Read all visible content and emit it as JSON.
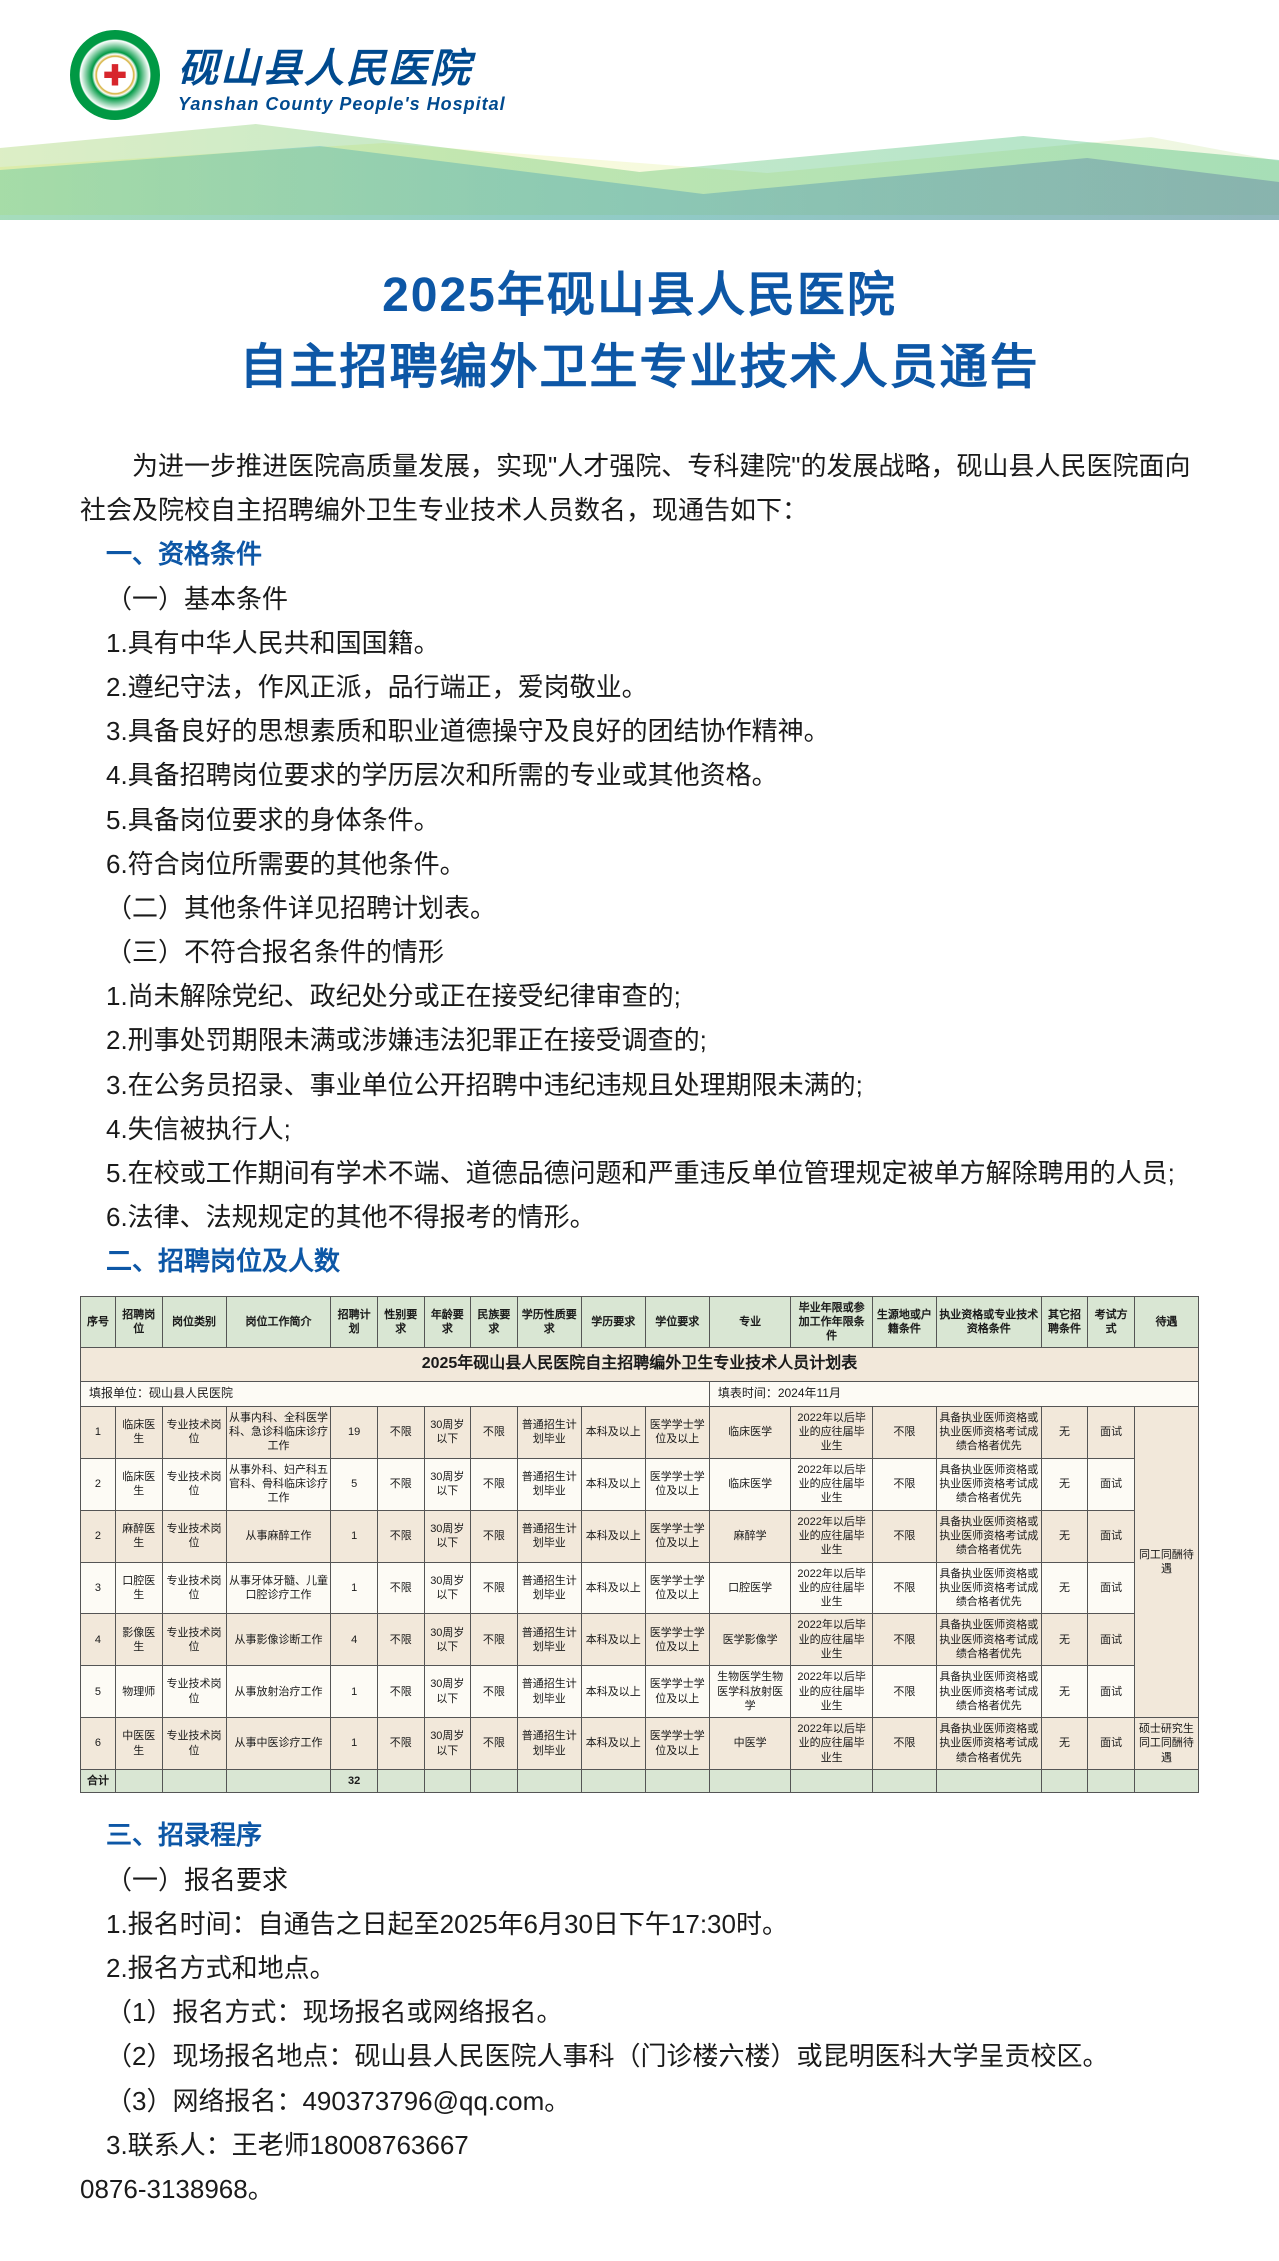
{
  "header": {
    "hospital_cn": "砚山县人民医院",
    "hospital_en": "Yanshan County People's Hospital"
  },
  "title": {
    "line1": "2025年砚山县人民医院",
    "line2": "自主招聘编外卫生专业技术人员通告"
  },
  "intro": "为进一步推进医院高质量发展，实现\"人才强院、专科建院\"的发展战略，砚山县人民医院面向社会及院校自主招聘编外卫生专业技术人员数名，现通告如下：",
  "sec1": {
    "head": "一、资格条件",
    "sub1": "（一）基本条件",
    "items1": [
      "1.具有中华人民共和国国籍。",
      "2.遵纪守法，作风正派，品行端正，爱岗敬业。",
      "3.具备良好的思想素质和职业道德操守及良好的团结协作精神。",
      "4.具备招聘岗位要求的学历层次和所需的专业或其他资格。",
      "5.具备岗位要求的身体条件。",
      "6.符合岗位所需要的其他条件。"
    ],
    "sub2": "（二）其他条件详见招聘计划表。",
    "sub3": "（三）不符合报名条件的情形",
    "items3": [
      "1.尚未解除党纪、政纪处分或正在接受纪律审查的;",
      "2.刑事处罚期限未满或涉嫌违法犯罪正在接受调查的;",
      "3.在公务员招录、事业单位公开招聘中违纪违规且处理期限未满的;",
      "4.失信被执行人;",
      "5.在校或工作期间有学术不端、道德品德问题和严重违反单位管理规定被单方解除聘用的人员;",
      "6.法律、法规规定的其他不得报考的情形。"
    ]
  },
  "sec2": {
    "head": "二、招聘岗位及人数"
  },
  "table": {
    "title": "2025年砚山县人民医院自主招聘编外卫生专业技术人员计划表",
    "meta_left": "填报单位：砚山县人民医院",
    "meta_right": "填表时间：2024年11月",
    "headers": [
      "序号",
      "招聘岗位",
      "岗位类别",
      "岗位工作简介",
      "招聘计划",
      "性别要求",
      "年龄要求",
      "民族要求",
      "学历性质要求",
      "学历要求",
      "学位要求",
      "专业",
      "毕业年限或参加工作年限条件",
      "生源地或户籍条件",
      "执业资格或专业技术资格条件",
      "其它招聘条件",
      "考试方式",
      "待遇"
    ],
    "rows": [
      [
        "1",
        "临床医生",
        "专业技术岗位",
        "从事内科、全科医学科、急诊科临床诊疗工作",
        "19",
        "不限",
        "30周岁以下",
        "不限",
        "普通招生计划毕业",
        "本科及以上",
        "医学学士学位及以上",
        "临床医学",
        "2022年以后毕业的应往届毕业生",
        "不限",
        "具备执业医师资格或执业医师资格考试成绩合格者优先",
        "无",
        "面试"
      ],
      [
        "2",
        "临床医生",
        "专业技术岗位",
        "从事外科、妇产科五官科、骨科临床诊疗工作",
        "5",
        "不限",
        "30周岁以下",
        "不限",
        "普通招生计划毕业",
        "本科及以上",
        "医学学士学位及以上",
        "临床医学",
        "2022年以后毕业的应往届毕业生",
        "不限",
        "具备执业医师资格或执业医师资格考试成绩合格者优先",
        "无",
        "面试"
      ],
      [
        "2",
        "麻醉医生",
        "专业技术岗位",
        "从事麻醉工作",
        "1",
        "不限",
        "30周岁以下",
        "不限",
        "普通招生计划毕业",
        "本科及以上",
        "医学学士学位及以上",
        "麻醉学",
        "2022年以后毕业的应往届毕业生",
        "不限",
        "具备执业医师资格或执业医师资格考试成绩合格者优先",
        "无",
        "面试"
      ],
      [
        "3",
        "口腔医生",
        "专业技术岗位",
        "从事牙体牙髓、儿童口腔诊疗工作",
        "1",
        "不限",
        "30周岁以下",
        "不限",
        "普通招生计划毕业",
        "本科及以上",
        "医学学士学位及以上",
        "口腔医学",
        "2022年以后毕业的应往届毕业生",
        "不限",
        "具备执业医师资格或执业医师资格考试成绩合格者优先",
        "无",
        "面试"
      ],
      [
        "4",
        "影像医生",
        "专业技术岗位",
        "从事影像诊断工作",
        "4",
        "不限",
        "30周岁以下",
        "不限",
        "普通招生计划毕业",
        "本科及以上",
        "医学学士学位及以上",
        "医学影像学",
        "2022年以后毕业的应往届毕业生",
        "不限",
        "具备执业医师资格或执业医师资格考试成绩合格者优先",
        "无",
        "面试"
      ],
      [
        "5",
        "物理师",
        "专业技术岗位",
        "从事放射治疗工作",
        "1",
        "不限",
        "30周岁以下",
        "不限",
        "普通招生计划毕业",
        "本科及以上",
        "医学学士学位及以上",
        "生物医学生物医学科放射医学",
        "2022年以后毕业的应往届毕业生",
        "不限",
        "具备执业医师资格或执业医师资格考试成绩合格者优先",
        "无",
        "面试"
      ],
      [
        "6",
        "中医医生",
        "专业技术岗位",
        "从事中医诊疗工作",
        "1",
        "不限",
        "30周岁以下",
        "不限",
        "普通招生计划毕业",
        "本科及以上",
        "医学学士学位及以上",
        "中医学",
        "2022年以后毕业的应往届毕业生",
        "不限",
        "具备执业医师资格或执业医师资格考试成绩合格者优先",
        "无",
        "面试"
      ]
    ],
    "treatment_main": "同工同酬待遇",
    "treatment_last": "硕士研究生同工同酬待遇",
    "sum_label": "合计",
    "sum_value": "32"
  },
  "sec3": {
    "head": "三、招录程序",
    "sub1": "（一）报名要求",
    "l1": "1.报名时间：自通告之日起至2025年6月30日下午17:30时。",
    "l2": "2.报名方式和地点。",
    "l3": "（1）报名方式：现场报名或网络报名。",
    "l4": "（2）现场报名地点：砚山县人民医院人事科（门诊楼六楼）或昆明医科大学呈贡校区。",
    "l5": "（3）网络报名：490373796@qq.com。",
    "l6": "3.联系人：王老师18008763667",
    "l7": "0876-3138968。"
  },
  "colors": {
    "brand_blue": "#0d57a6",
    "logo_green": "#009944",
    "table_header_bg": "#d9e6d3",
    "table_row_odd": "#f2e8da",
    "table_row_even": "#fdfbf5"
  }
}
